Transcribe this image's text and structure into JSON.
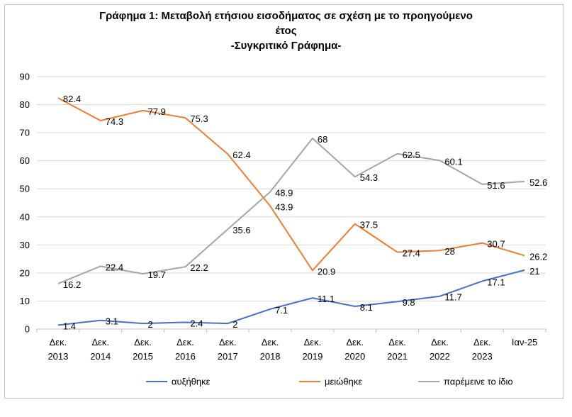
{
  "chart_data": {
    "type": "line",
    "title": [
      "Γράφημα 1: Μεταβολή ετήσιου εισοδήματος σε σχέση με το προηγούμενο",
      "έτος",
      "-Συγκριτικό Γράφημα-"
    ],
    "categories": [
      [
        "Δεκ.",
        "2013"
      ],
      [
        "Δεκ.",
        "2014"
      ],
      [
        "Δεκ.",
        "2015"
      ],
      [
        "Δεκ.",
        "2016"
      ],
      [
        "Δεκ.",
        "2017"
      ],
      [
        "Δεκ.",
        "2018"
      ],
      [
        "Δεκ.",
        "2019"
      ],
      [
        "Δεκ.",
        "2020"
      ],
      [
        "Δεκ.",
        "2021"
      ],
      [
        "Δεκ.",
        "2022"
      ],
      [
        "Δεκ.",
        "2023"
      ],
      [
        "Ιαν-25"
      ]
    ],
    "ylim": [
      0,
      90
    ],
    "yticks": [
      0,
      10,
      20,
      30,
      40,
      50,
      60,
      70,
      80,
      90
    ],
    "grid": true,
    "legend": "bottom",
    "series": [
      {
        "name": "αυξήθηκε",
        "color": "#4472c4",
        "values": [
          1.4,
          3.1,
          2,
          2.4,
          2,
          7.1,
          11.1,
          8.1,
          9.8,
          11.7,
          17.1,
          21
        ],
        "labels": [
          "1.4",
          "3.1",
          "2",
          "2.4",
          "2",
          "7.1",
          "11.1",
          "8.1",
          "9.8",
          "11.7",
          "17.1",
          "21"
        ]
      },
      {
        "name": "μειώθηκε",
        "color": "#ed7d31",
        "values": [
          82.4,
          74.3,
          77.9,
          75.3,
          62.4,
          43.9,
          20.9,
          37.5,
          27.4,
          28,
          30.7,
          26.2
        ],
        "labels": [
          "82.4",
          "74.3",
          "77.9",
          "75.3",
          "62.4",
          "43.9",
          "20.9",
          "37.5",
          "27.4",
          "28",
          "30.7",
          "26.2"
        ]
      },
      {
        "name": "παρέμεινε το ίδιο",
        "color": "#a5a5a5",
        "values": [
          16.2,
          22.4,
          19.7,
          22.2,
          35.6,
          48.9,
          68,
          54.3,
          62.5,
          60.1,
          51.6,
          52.6
        ],
        "labels": [
          "16.2",
          "22.4",
          "19.7",
          "22.2",
          "35.6",
          "48.9",
          "68",
          "54.3",
          "62.5",
          "60.1",
          "51.6",
          "52.6"
        ]
      }
    ]
  }
}
